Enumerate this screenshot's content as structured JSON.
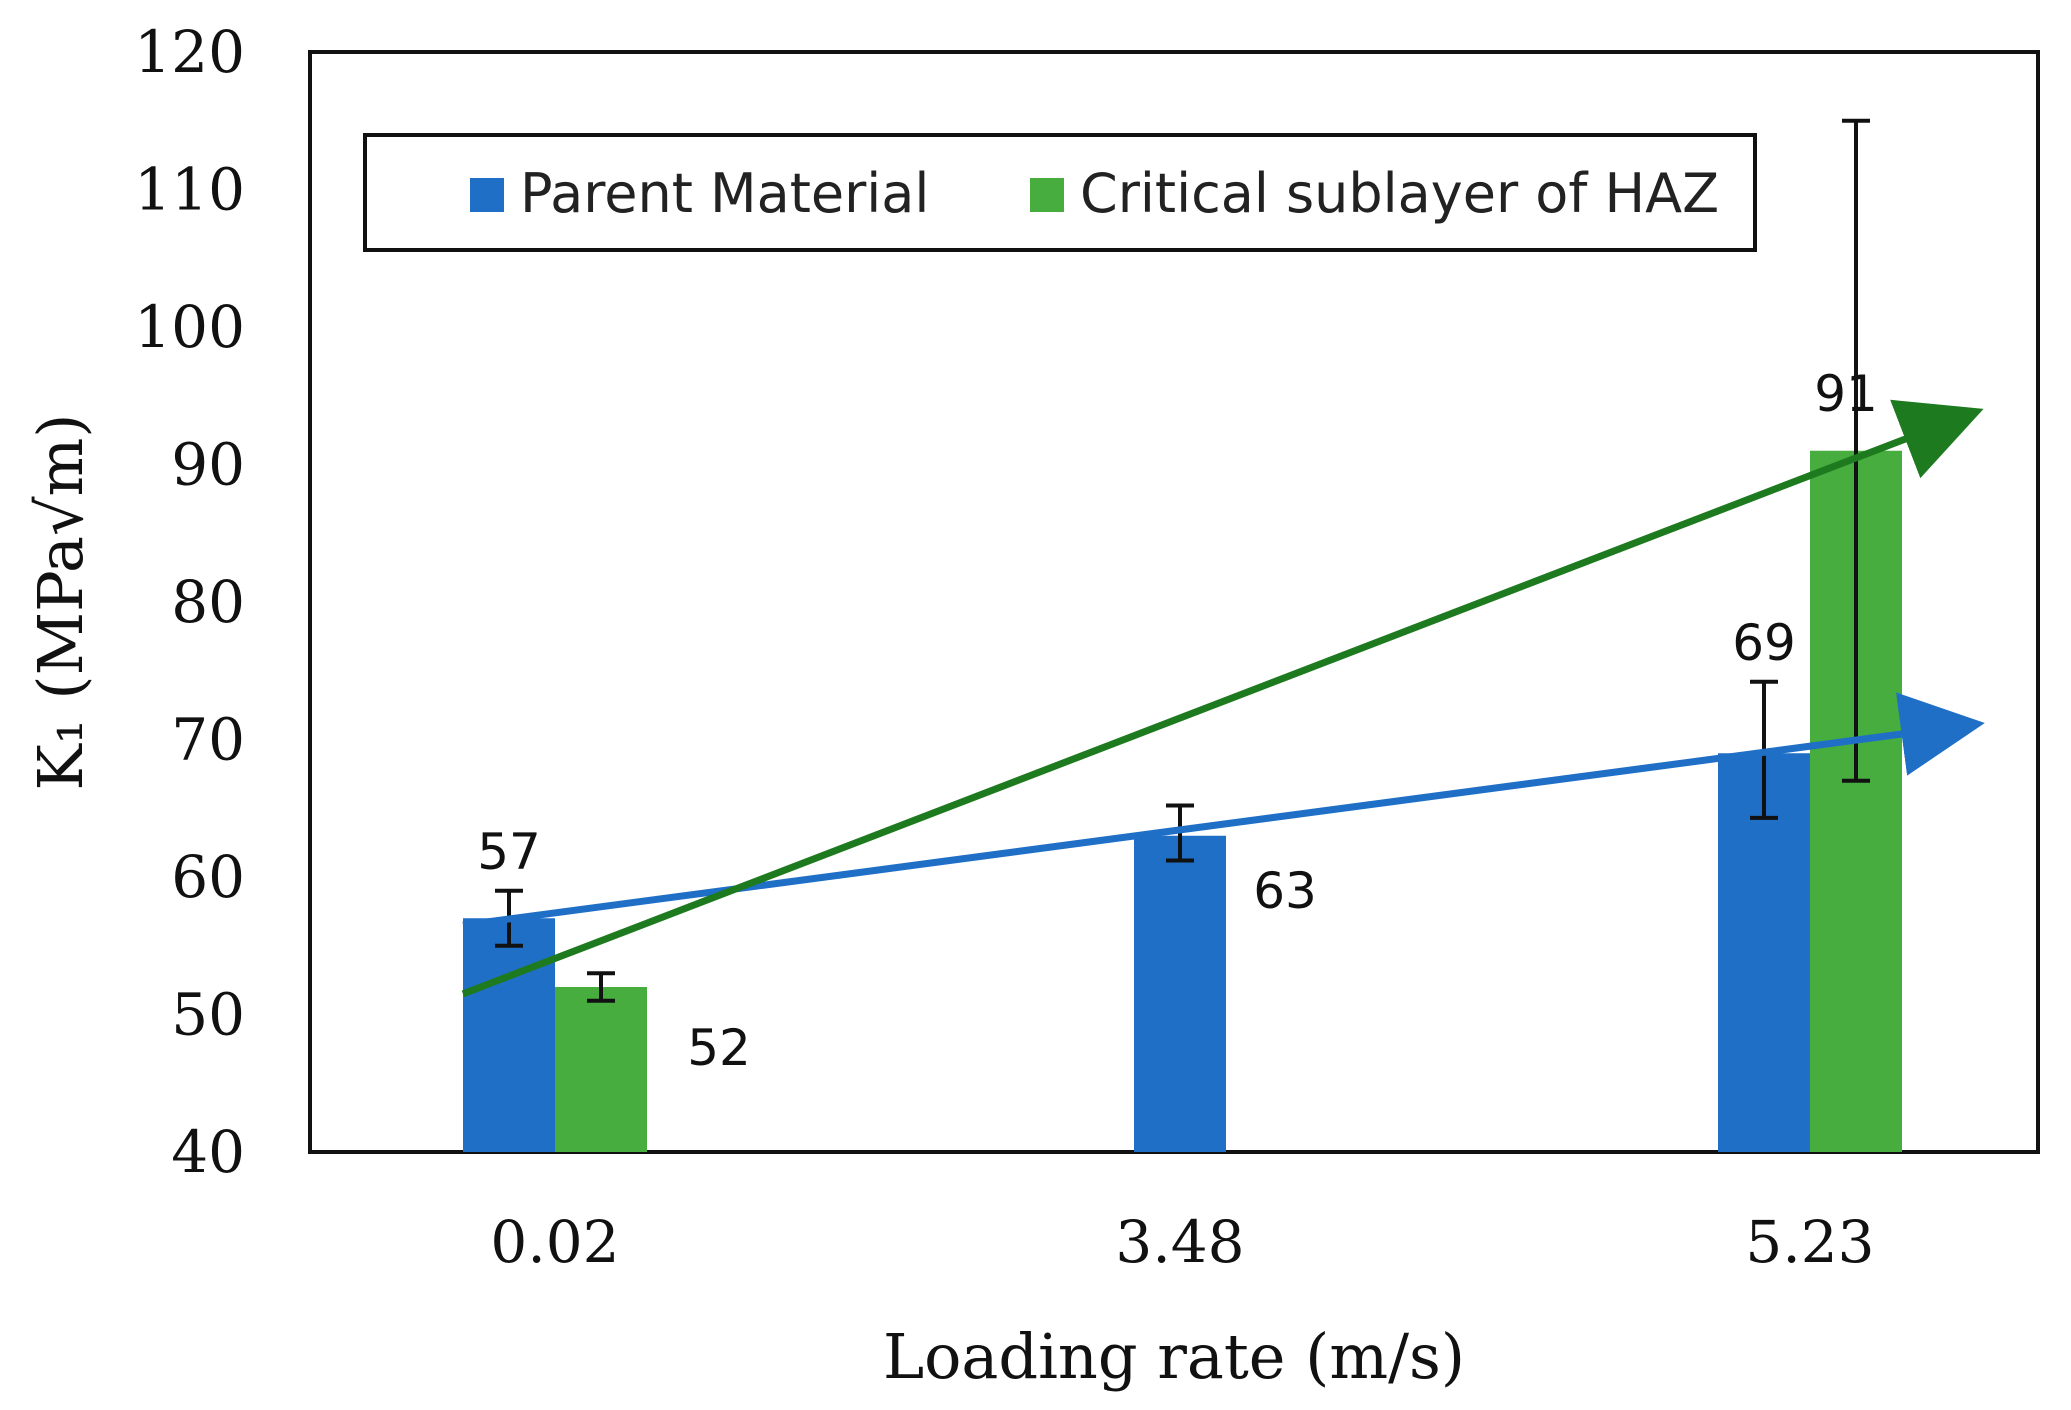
{
  "chart_data": {
    "type": "bar",
    "title": "",
    "xlabel": "Loading rate (m/s)",
    "ylabel": "K₁ (MPa√m)",
    "ylim": [
      40,
      120
    ],
    "yticks": [
      40,
      50,
      60,
      70,
      80,
      90,
      100,
      110,
      120
    ],
    "grid": false,
    "legend_position": "top",
    "categories": [
      "0.02",
      "3.48",
      "5.23"
    ],
    "series": [
      {
        "name": "Parent Material",
        "color": "#1f6fc7",
        "values": [
          57,
          63,
          69
        ],
        "error": [
          [
            55,
            59
          ],
          [
            61.2,
            65.2
          ],
          [
            64.3,
            74.2
          ]
        ],
        "labels": [
          "57",
          "63",
          "69"
        ]
      },
      {
        "name": "Critical sublayer of HAZ",
        "color": "#47ad3e",
        "values": [
          52,
          null,
          91
        ],
        "error": [
          [
            51,
            53
          ],
          null,
          [
            67,
            115
          ]
        ],
        "labels": [
          "52",
          "",
          "91"
        ]
      }
    ],
    "trend_arrows": [
      {
        "series": "Parent Material",
        "color": "#1f6fc7",
        "from": [
          0.02,
          56.5
        ],
        "to": [
          5.23,
          71
        ]
      },
      {
        "series": "Critical sublayer of HAZ",
        "color": "#1e7a1e",
        "from": [
          0.02,
          51.5
        ],
        "to": [
          5.23,
          93.5
        ]
      }
    ]
  }
}
